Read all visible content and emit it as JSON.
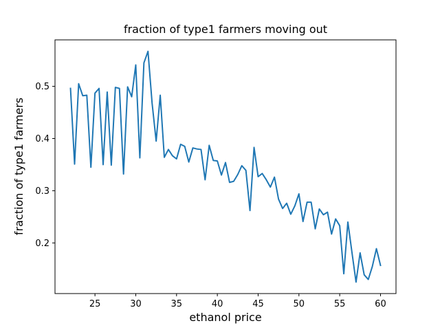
{
  "chart_data": {
    "type": "line",
    "title": "fraction of type1 farmers moving out",
    "xlabel": "ethanol price",
    "ylabel": "fraction of type1 farmers",
    "xlim": [
      20.1,
      61.9
    ],
    "ylim": [
      0.103,
      0.589
    ],
    "xticks": [
      25,
      30,
      35,
      40,
      45,
      50,
      55,
      60
    ],
    "xtick_labels": [
      "25",
      "30",
      "35",
      "40",
      "45",
      "50",
      "55",
      "60"
    ],
    "yticks": [
      0.2,
      0.3,
      0.4,
      0.5
    ],
    "ytick_labels": [
      "0.2",
      "0.3",
      "0.4",
      "0.5"
    ],
    "grid": false,
    "line_color": "#1f77b4",
    "series": [
      {
        "x": [
          22.0,
          22.5,
          23.0,
          23.5,
          24.0,
          24.5,
          25.0,
          25.5,
          26.0,
          26.5,
          27.0,
          27.5,
          28.0,
          28.5,
          29.0,
          29.5,
          30.0,
          30.5,
          31.0,
          31.5,
          32.0,
          32.5,
          33.0,
          33.5,
          34.0,
          34.5,
          35.0,
          35.5,
          36.0,
          36.5,
          37.0,
          37.5,
          38.0,
          38.5,
          39.0,
          39.5,
          40.0,
          40.5,
          41.0,
          41.5,
          42.0,
          42.5,
          43.0,
          43.5,
          44.0,
          44.5,
          45.0,
          45.5,
          46.0,
          46.5,
          47.0,
          47.5,
          48.0,
          48.5,
          49.0,
          49.5,
          50.0,
          50.5,
          51.0,
          51.5,
          52.0,
          52.5,
          53.0,
          53.5,
          54.0,
          54.5,
          55.0,
          55.5,
          56.0,
          56.5,
          57.0,
          57.5,
          58.0,
          58.5,
          59.0,
          59.5,
          60.0
        ],
        "y": [
          0.496,
          0.351,
          0.505,
          0.482,
          0.483,
          0.345,
          0.487,
          0.496,
          0.35,
          0.489,
          0.349,
          0.498,
          0.496,
          0.332,
          0.499,
          0.48,
          0.541,
          0.363,
          0.545,
          0.567,
          0.468,
          0.395,
          0.483,
          0.364,
          0.379,
          0.367,
          0.361,
          0.389,
          0.385,
          0.355,
          0.382,
          0.38,
          0.379,
          0.321,
          0.387,
          0.358,
          0.357,
          0.33,
          0.354,
          0.316,
          0.318,
          0.331,
          0.348,
          0.339,
          0.262,
          0.383,
          0.327,
          0.333,
          0.321,
          0.307,
          0.326,
          0.284,
          0.266,
          0.276,
          0.255,
          0.271,
          0.294,
          0.241,
          0.278,
          0.278,
          0.227,
          0.265,
          0.254,
          0.259,
          0.217,
          0.246,
          0.233,
          0.141,
          0.24,
          0.182,
          0.125,
          0.181,
          0.139,
          0.13,
          0.155,
          0.189,
          0.157
        ]
      }
    ]
  }
}
